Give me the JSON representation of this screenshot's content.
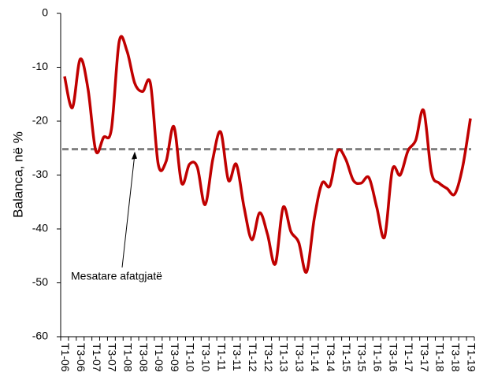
{
  "chart_data": {
    "type": "line",
    "y_label": "Balanca, në %",
    "categories": [
      "T1-06",
      null,
      "T3-06",
      null,
      "T1-07",
      null,
      "T3-07",
      null,
      "T1-08",
      null,
      "T3-08",
      null,
      "T1-09",
      null,
      "T3-09",
      null,
      "T1-10",
      null,
      "T3-10",
      null,
      "T1-11",
      null,
      "T3-11",
      null,
      "T1-12",
      null,
      "T3-12",
      null,
      "T1-13",
      null,
      "T3-13",
      null,
      "T1-14",
      null,
      "T3-14",
      null,
      "T1-15",
      null,
      "T3-15",
      null,
      "T1-16",
      null,
      "T3-16",
      null,
      "T1-17",
      null,
      "T3-17",
      null,
      "T1-18",
      null,
      "T3-18",
      null,
      "T1-19"
    ],
    "series": [
      {
        "name": "Balanca",
        "color": "#c00000",
        "values": [
          -11.7,
          -17.5,
          -8.5,
          -14,
          -25.5,
          -23,
          -21.5,
          -5.2,
          -7,
          -13,
          -14.5,
          -13,
          -28,
          -27.5,
          -21,
          -31.5,
          -28,
          -28.5,
          -35.5,
          -27,
          -22,
          -31,
          -28,
          -36,
          -42,
          -37,
          -41,
          -46.5,
          -36,
          -40.5,
          -42.5,
          -48,
          -38,
          -31.5,
          -32,
          -25.5,
          -27,
          -31,
          -31.5,
          -30.5,
          -36,
          -41.5,
          -29,
          -30,
          -25.5,
          -23.5,
          -18,
          -29.5,
          -31.5,
          -32.5,
          -33.5,
          -28.5,
          -19.5
        ]
      }
    ],
    "average": {
      "value": -25.2,
      "color": "#808080",
      "label": "Mesatare afatgjatë"
    },
    "ylim": [
      -60,
      0
    ],
    "yticks": [
      0,
      -10,
      -20,
      -30,
      -40,
      -50,
      -60
    ]
  }
}
